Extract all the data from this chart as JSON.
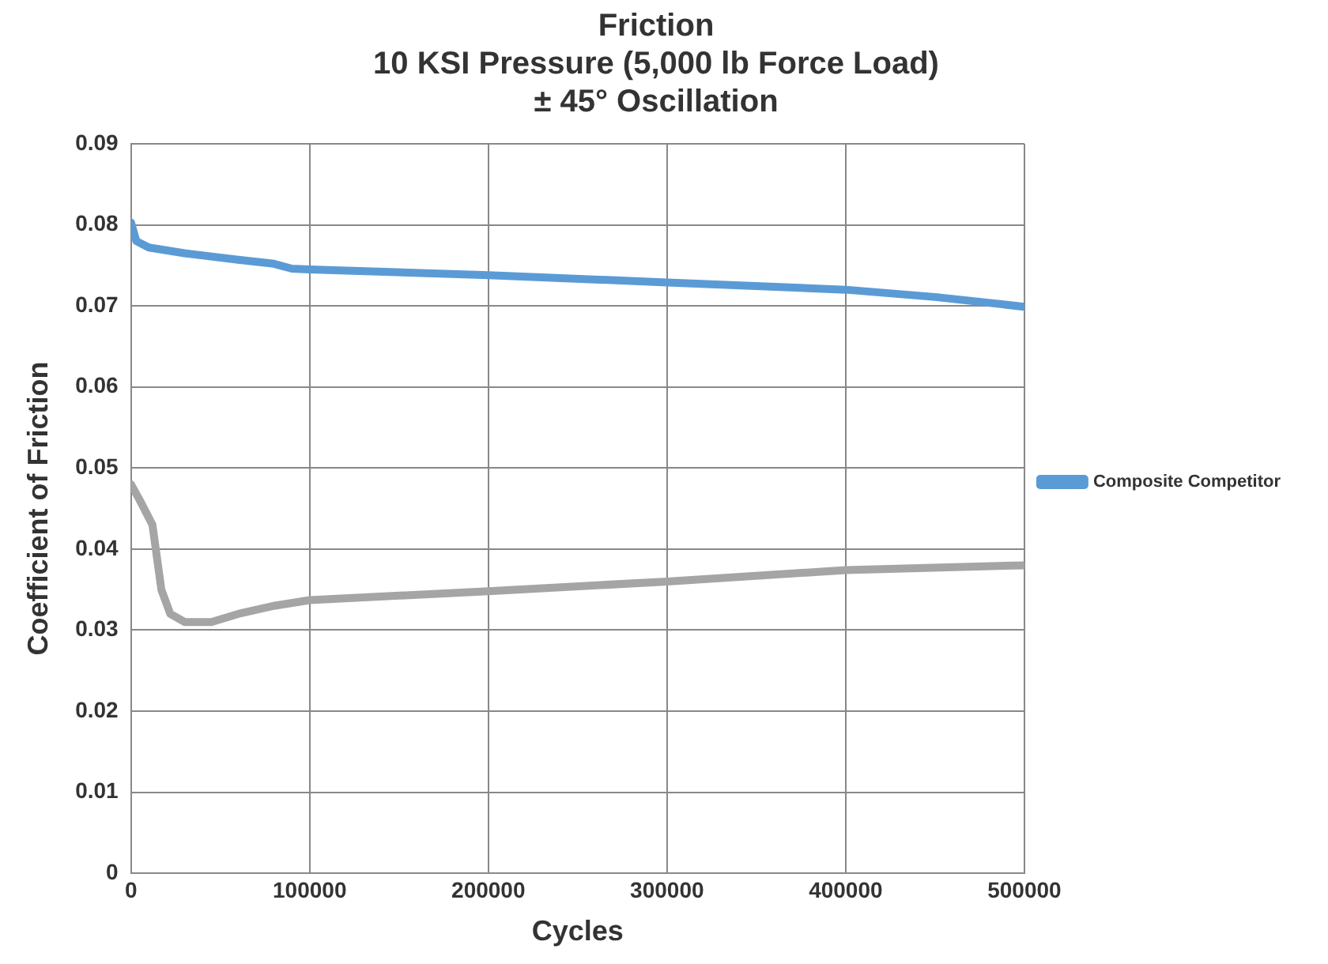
{
  "chart_data": {
    "type": "line",
    "title": "Friction\n10 KSI Pressure (5,000 lb Force Load)\n± 45° Oscillation",
    "xlabel": "Cycles",
    "ylabel": "Coefficient of Friction",
    "xlim": [
      0,
      500000
    ],
    "xticks": [
      0,
      100000,
      200000,
      300000,
      400000,
      500000
    ],
    "ylim": [
      0,
      0.09
    ],
    "yticks": [
      0,
      0.01,
      0.02,
      0.03,
      0.04,
      0.05,
      0.06,
      0.07,
      0.08,
      0.09
    ],
    "grid": true,
    "legend": "right",
    "marker": "none",
    "line_style": "solid",
    "series": [
      {
        "color": "#a5a5a5",
        "x": [
          0,
          5000,
          12000,
          17000,
          22000,
          30000,
          45000,
          60000,
          80000,
          100000,
          200000,
          300000,
          400000,
          500000
        ],
        "values": [
          0.048,
          0.046,
          0.043,
          0.035,
          0.032,
          0.031,
          0.031,
          0.032,
          0.033,
          0.0337,
          0.0348,
          0.036,
          0.0374,
          0.038
        ]
      },
      {
        "name": "Composite Competitor",
        "color": "#5b9bd5",
        "x": [
          0,
          3000,
          10000,
          30000,
          60000,
          80000,
          90000,
          100000,
          200000,
          300000,
          400000,
          450000,
          500000
        ],
        "values": [
          0.0803,
          0.078,
          0.0772,
          0.0765,
          0.0757,
          0.0752,
          0.0746,
          0.0745,
          0.0738,
          0.0729,
          0.072,
          0.0711,
          0.0699
        ]
      }
    ]
  }
}
